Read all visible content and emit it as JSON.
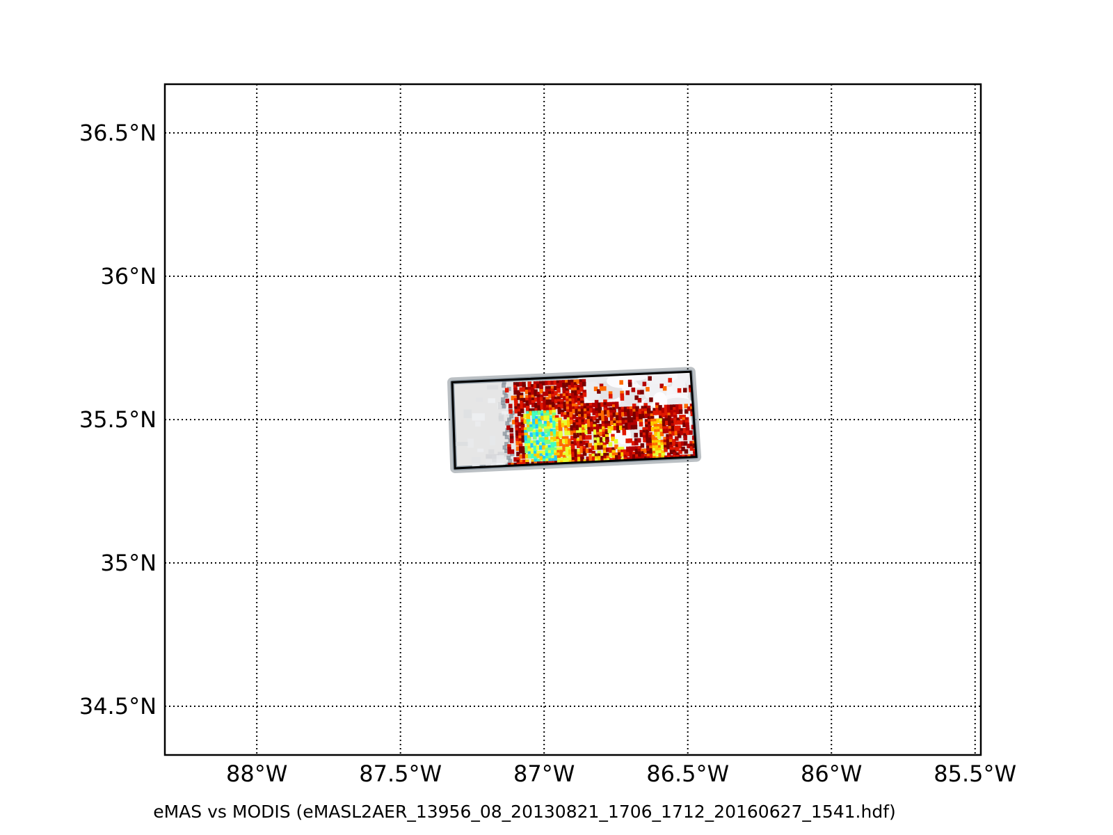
{
  "figure": {
    "caption": "eMAS vs MODIS (eMASL2AER_13956_08_20130821_1706_1712_20160627_1541.hdf)"
  },
  "map": {
    "lon_range": [
      -88.32,
      -85.48
    ],
    "lat_range": [
      34.33,
      36.67
    ],
    "grid": true,
    "grid_style": "dotted",
    "meridians": [
      {
        "value": -88.0,
        "label": "88°W"
      },
      {
        "value": -87.5,
        "label": "87.5°W"
      },
      {
        "value": -87.0,
        "label": "87°W"
      },
      {
        "value": -86.5,
        "label": "86.5°W"
      },
      {
        "value": -86.0,
        "label": "86°W"
      },
      {
        "value": -85.5,
        "label": "85.5°W"
      }
    ],
    "parallels": [
      {
        "value": 36.5,
        "label": "36.5°N"
      },
      {
        "value": 36.0,
        "label": "36°N"
      },
      {
        "value": 35.5,
        "label": "35.5°N"
      },
      {
        "value": 35.0,
        "label": "35°N"
      },
      {
        "value": 34.5,
        "label": "34.5°N"
      }
    ],
    "swath": {
      "corners_lonlat": [
        [
          -87.32,
          35.63
        ],
        [
          -86.49,
          35.667
        ],
        [
          -86.47,
          35.37
        ],
        [
          -87.31,
          35.33
        ]
      ],
      "background_color": "#e6e6e6",
      "edge_color": "#3d4a55"
    },
    "aerosol_colors": [
      "#7a0000",
      "#b40000",
      "#e01800",
      "#ff6a00",
      "#ffcc00",
      "#e8ff30",
      "#7dff7a",
      "#40ffc0",
      "#20c8ff"
    ]
  }
}
